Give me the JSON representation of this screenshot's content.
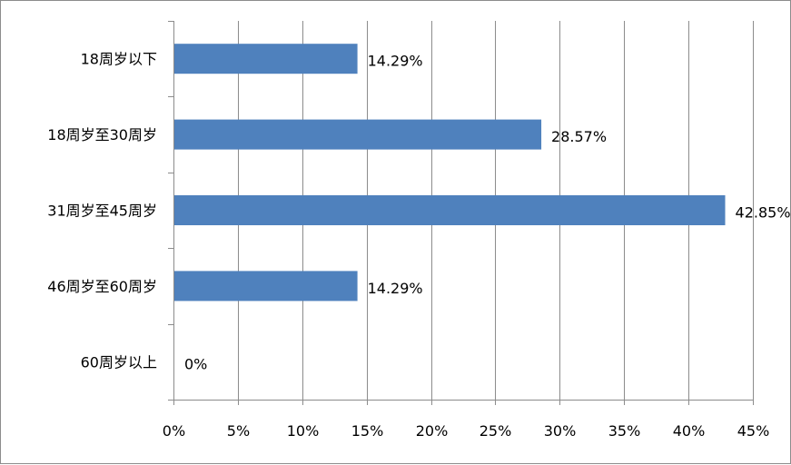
{
  "chart_data": {
    "type": "bar",
    "orientation": "horizontal",
    "title": "",
    "xlabel": "",
    "ylabel": "",
    "categories": [
      "18周岁以下",
      "18周岁至30周岁",
      "31周岁至45周岁",
      "46周岁至60周岁",
      "60周岁以上"
    ],
    "values": [
      14.29,
      28.57,
      42.85,
      14.29,
      0
    ],
    "data_labels": [
      "14.29%",
      "28.57%",
      "42.85%",
      "14.29%",
      "0%"
    ],
    "xlim": [
      0,
      45
    ],
    "x_ticks": [
      0,
      5,
      10,
      15,
      20,
      25,
      30,
      35,
      40,
      45
    ],
    "x_tick_labels": [
      "0%",
      "5%",
      "10%",
      "15%",
      "20%",
      "25%",
      "30%",
      "35%",
      "40%",
      "45%"
    ],
    "grid": "vertical",
    "legend": "none",
    "colors": {
      "bar": "#4f81bd",
      "grid": "#8c8c8c",
      "axis": "#8c8c8c",
      "border": "#8c8c8c"
    }
  }
}
